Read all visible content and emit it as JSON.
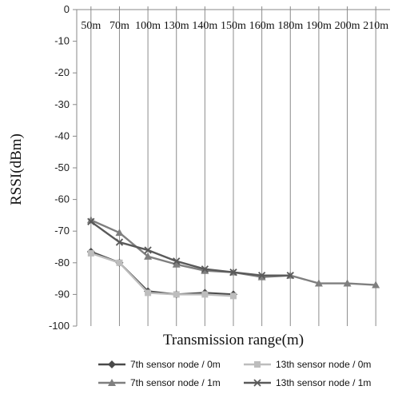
{
  "chart_data": {
    "type": "line",
    "xlabel": "Transmission range(m)",
    "ylabel": "RSSI(dBm)",
    "ylim": [
      -100,
      0
    ],
    "yticks": [
      0,
      -10,
      -20,
      -30,
      -40,
      -50,
      -60,
      -70,
      -80,
      -90,
      -100
    ],
    "categories": [
      "50m",
      "70m",
      "100m",
      "130m",
      "140m",
      "150m",
      "160m",
      "180m",
      "190m",
      "200m",
      "210m"
    ],
    "x_axis_position": "top",
    "grid": "vertical lines at categories",
    "legend_placement": "bottom",
    "series": [
      {
        "name": "7th sensor node / 0m",
        "marker": "diamond",
        "color": "#4a4a4a",
        "values": [
          -76.5,
          -80,
          -89,
          -90,
          -89.5,
          -90,
          null,
          null,
          null,
          null,
          null
        ]
      },
      {
        "name": "13th sensor node / 0m",
        "marker": "square",
        "color": "#bdbdbd",
        "values": [
          -77,
          -80,
          -89.5,
          -90,
          -90,
          -90.5,
          null,
          null,
          null,
          null,
          null
        ]
      },
      {
        "name": "7th sensor node / 1m",
        "marker": "triangle",
        "color": "#7f7f7f",
        "values": [
          -66.5,
          -70.5,
          -78,
          -80.5,
          -82.5,
          -83,
          -84.5,
          -84,
          -86.5,
          -86.5,
          -87
        ]
      },
      {
        "name": "13th sensor node / 1m",
        "marker": "x",
        "color": "#5a5a5a",
        "values": [
          -67,
          -73.5,
          -76,
          -79.5,
          -82,
          -83,
          -84,
          -84,
          null,
          null,
          null
        ]
      }
    ]
  }
}
